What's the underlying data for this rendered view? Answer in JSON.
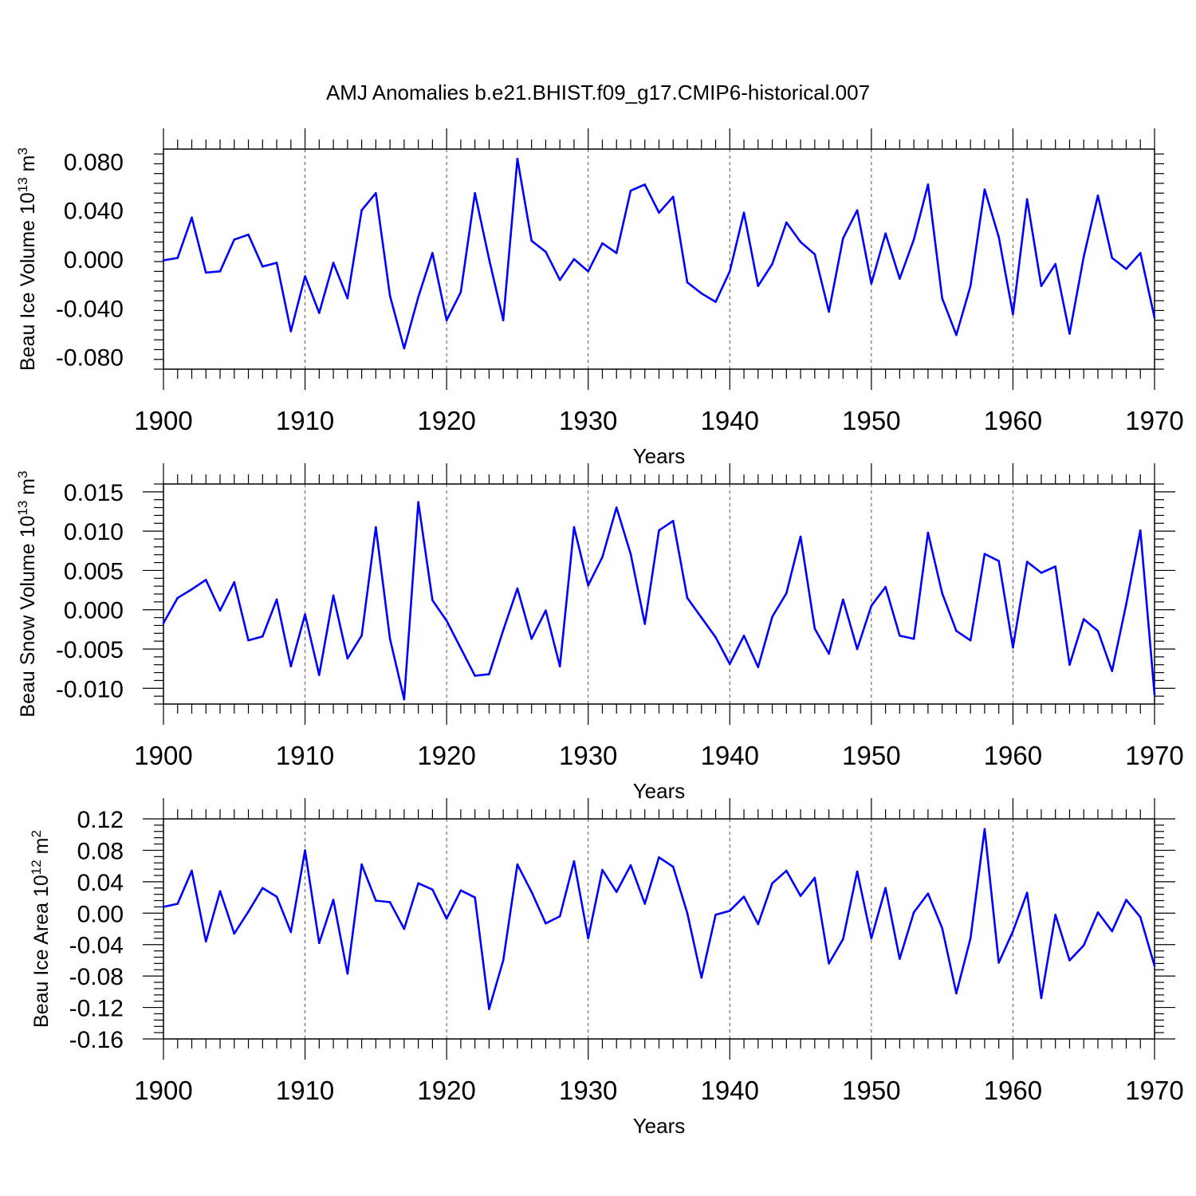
{
  "title": "AMJ Anomalies b.e21.BHIST.f09_g17.CMIP6-historical.007",
  "line_color": "#0000ff",
  "chart_data": [
    {
      "type": "line",
      "ylabel_base": "Beau Ice Volume 10",
      "ylabel_exp": "13",
      "ylabel_unit": " m",
      "ylabel_unit_exp": "3",
      "xlabel": "Years",
      "xlim": [
        1900,
        1970
      ],
      "ylim": [
        -0.09,
        0.09
      ],
      "xticks": [
        1900,
        1910,
        1920,
        1930,
        1940,
        1950,
        1960,
        1970
      ],
      "xtick_labels": [
        "1900",
        "1910",
        "1920",
        "1930",
        "1940",
        "1950",
        "1960",
        "1970"
      ],
      "yticks": [
        -0.08,
        -0.04,
        0.0,
        0.04,
        0.08
      ],
      "ytick_labels": [
        "-0.080",
        "-0.040",
        "0.000",
        "0.040",
        "0.080"
      ],
      "x": [
        1900,
        1901,
        1902,
        1903,
        1904,
        1905,
        1906,
        1907,
        1908,
        1909,
        1910,
        1911,
        1912,
        1913,
        1914,
        1915,
        1916,
        1917,
        1918,
        1919,
        1920,
        1921,
        1922,
        1923,
        1924,
        1925,
        1926,
        1927,
        1928,
        1929,
        1930,
        1931,
        1932,
        1933,
        1934,
        1935,
        1936,
        1937,
        1938,
        1939,
        1940,
        1941,
        1942,
        1943,
        1944,
        1945,
        1946,
        1947,
        1948,
        1949,
        1950,
        1951,
        1952,
        1953,
        1954,
        1955,
        1956,
        1957,
        1958,
        1959,
        1960,
        1961,
        1962,
        1963,
        1964,
        1965,
        1966,
        1967,
        1968,
        1969,
        1970
      ],
      "values": [
        -0.001,
        0.001,
        0.034,
        -0.011,
        -0.01,
        0.016,
        0.02,
        -0.006,
        -0.003,
        -0.059,
        -0.014,
        -0.044,
        -0.003,
        -0.032,
        0.04,
        0.054,
        -0.03,
        -0.073,
        -0.031,
        0.005,
        -0.05,
        -0.027,
        0.054,
        0.0,
        -0.05,
        0.082,
        0.015,
        0.006,
        -0.017,
        0.0,
        -0.01,
        0.013,
        0.005,
        0.056,
        0.061,
        0.038,
        0.051,
        -0.019,
        -0.028,
        -0.035,
        -0.01,
        0.038,
        -0.022,
        -0.004,
        0.03,
        0.014,
        0.004,
        -0.043,
        0.017,
        0.04,
        -0.02,
        0.021,
        -0.016,
        0.016,
        0.061,
        -0.032,
        -0.062,
        -0.022,
        0.057,
        0.018,
        -0.045,
        0.049,
        -0.022,
        -0.004,
        -0.061,
        0.002,
        0.052,
        0.001,
        -0.008,
        0.005,
        -0.048
      ]
    },
    {
      "type": "line",
      "ylabel_base": "Beau Snow Volume 10",
      "ylabel_exp": "13",
      "ylabel_unit": " m",
      "ylabel_unit_exp": "3",
      "xlabel": "Years",
      "xlim": [
        1900,
        1970
      ],
      "ylim": [
        -0.012,
        0.016
      ],
      "xticks": [
        1900,
        1910,
        1920,
        1930,
        1940,
        1950,
        1960,
        1970
      ],
      "xtick_labels": [
        "1900",
        "1910",
        "1920",
        "1930",
        "1940",
        "1950",
        "1960",
        "1970"
      ],
      "yticks": [
        -0.01,
        -0.005,
        0.0,
        0.005,
        0.01,
        0.015
      ],
      "ytick_labels": [
        "-0.010",
        "-0.005",
        "0.000",
        "0.005",
        "0.010",
        "0.015"
      ],
      "x": [
        1900,
        1901,
        1902,
        1903,
        1904,
        1905,
        1906,
        1907,
        1908,
        1909,
        1910,
        1911,
        1912,
        1913,
        1914,
        1915,
        1916,
        1917,
        1918,
        1919,
        1920,
        1921,
        1922,
        1923,
        1924,
        1925,
        1926,
        1927,
        1928,
        1929,
        1930,
        1931,
        1932,
        1933,
        1934,
        1935,
        1936,
        1937,
        1938,
        1939,
        1940,
        1941,
        1942,
        1943,
        1944,
        1945,
        1946,
        1947,
        1948,
        1949,
        1950,
        1951,
        1952,
        1953,
        1954,
        1955,
        1956,
        1957,
        1958,
        1959,
        1960,
        1961,
        1962,
        1963,
        1964,
        1965,
        1966,
        1967,
        1968,
        1969,
        1970
      ],
      "values": [
        -0.0017,
        0.0015,
        0.0026,
        0.0038,
        -0.0001,
        0.0035,
        -0.0039,
        -0.0034,
        0.0013,
        -0.0072,
        -0.0006,
        -0.0083,
        0.0018,
        -0.0062,
        -0.0033,
        0.0105,
        -0.0037,
        -0.0114,
        0.0137,
        0.0012,
        -0.0014,
        -0.0049,
        -0.0084,
        -0.0082,
        -0.0026,
        0.0027,
        -0.0037,
        -0.0001,
        -0.0072,
        0.0105,
        0.0031,
        0.0067,
        0.013,
        0.0071,
        -0.0018,
        0.0101,
        0.0113,
        0.0015,
        -0.001,
        -0.0035,
        -0.0069,
        -0.0033,
        -0.0073,
        -0.0009,
        0.0021,
        0.0093,
        -0.0024,
        -0.0056,
        0.0013,
        -0.005,
        0.0005,
        0.0029,
        -0.0033,
        -0.0037,
        0.0098,
        0.0021,
        -0.0027,
        -0.0039,
        0.0071,
        0.0062,
        -0.0048,
        0.0061,
        0.0047,
        0.0055,
        -0.007,
        -0.0012,
        -0.0027,
        -0.0078,
        0.0007,
        0.0101,
        -0.0108
      ]
    },
    {
      "type": "line",
      "ylabel_base": "Beau Ice Area 10",
      "ylabel_exp": "12",
      "ylabel_unit": " m",
      "ylabel_unit_exp": "2",
      "xlabel": "Years",
      "xlim": [
        1900,
        1970
      ],
      "ylim": [
        -0.16,
        0.12
      ],
      "xticks": [
        1900,
        1910,
        1920,
        1930,
        1940,
        1950,
        1960,
        1970
      ],
      "xtick_labels": [
        "1900",
        "1910",
        "1920",
        "1930",
        "1940",
        "1950",
        "1960",
        "1970"
      ],
      "yticks": [
        -0.16,
        -0.12,
        -0.08,
        -0.04,
        0.0,
        0.04,
        0.08,
        0.12
      ],
      "ytick_labels": [
        "-0.16",
        "-0.12",
        "-0.08",
        "-0.04",
        "0.00",
        "0.04",
        "0.08",
        "0.12"
      ],
      "x": [
        1900,
        1901,
        1902,
        1903,
        1904,
        1905,
        1906,
        1907,
        1908,
        1909,
        1910,
        1911,
        1912,
        1913,
        1914,
        1915,
        1916,
        1917,
        1918,
        1919,
        1920,
        1921,
        1922,
        1923,
        1924,
        1925,
        1926,
        1927,
        1928,
        1929,
        1930,
        1931,
        1932,
        1933,
        1934,
        1935,
        1936,
        1937,
        1938,
        1939,
        1940,
        1941,
        1942,
        1943,
        1944,
        1945,
        1946,
        1947,
        1948,
        1949,
        1950,
        1951,
        1952,
        1953,
        1954,
        1955,
        1956,
        1957,
        1958,
        1959,
        1960,
        1961,
        1962,
        1963,
        1964,
        1965,
        1966,
        1967,
        1968,
        1969,
        1970
      ],
      "values": [
        0.008,
        0.012,
        0.054,
        -0.036,
        0.028,
        -0.026,
        0.002,
        0.032,
        0.021,
        -0.024,
        0.08,
        -0.038,
        0.017,
        -0.077,
        0.062,
        0.016,
        0.014,
        -0.02,
        0.038,
        0.03,
        -0.007,
        0.029,
        0.02,
        -0.122,
        -0.06,
        0.062,
        0.027,
        -0.013,
        -0.004,
        0.066,
        -0.032,
        0.055,
        0.027,
        0.061,
        0.012,
        0.071,
        0.059,
        0.0,
        -0.082,
        -0.002,
        0.003,
        0.021,
        -0.014,
        0.038,
        0.054,
        0.022,
        0.045,
        -0.064,
        -0.033,
        0.053,
        -0.032,
        0.032,
        -0.058,
        0.001,
        0.025,
        -0.019,
        -0.102,
        -0.032,
        0.107,
        -0.063,
        -0.023,
        0.026,
        -0.108,
        -0.002,
        -0.06,
        -0.041,
        0.001,
        -0.023,
        0.017,
        -0.005,
        -0.067
      ]
    }
  ]
}
